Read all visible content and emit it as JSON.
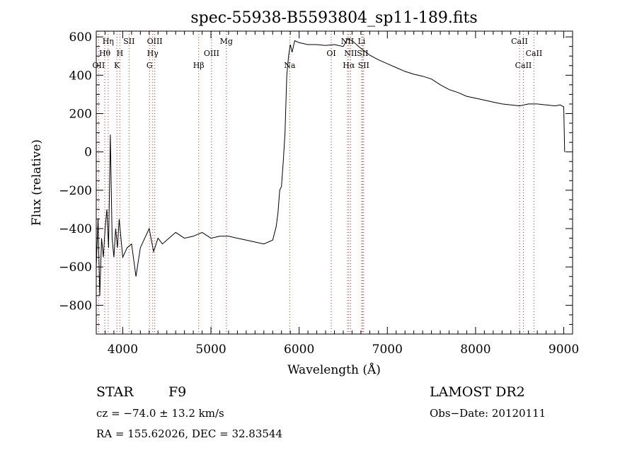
{
  "chart_data": {
    "type": "line",
    "title": "spec-55938-B5593804_sp11-189.fits",
    "xlabel": "Wavelength (Å)",
    "ylabel": "Flux (relative)",
    "xlim": [
      3700,
      9100
    ],
    "ylim": [
      -950,
      630
    ],
    "xticks": [
      4000,
      5000,
      6000,
      7000,
      8000,
      9000
    ],
    "yticks": [
      -800,
      -600,
      -400,
      -200,
      0,
      200,
      400,
      600
    ],
    "grid": false,
    "series": [
      {
        "name": "",
        "x": [
          3700,
          3720,
          3740,
          3760,
          3780,
          3800,
          3820,
          3840,
          3860,
          3880,
          3900,
          3920,
          3940,
          3960,
          3980,
          4000,
          4050,
          4100,
          4150,
          4200,
          4250,
          4300,
          4350,
          4400,
          4450,
          4500,
          4600,
          4700,
          4800,
          4900,
          5000,
          5100,
          5200,
          5300,
          5400,
          5500,
          5600,
          5700,
          5740,
          5760,
          5780,
          5800,
          5820,
          5840,
          5860,
          5880,
          5900,
          5920,
          5950,
          6000,
          6100,
          6200,
          6300,
          6400,
          6500,
          6550,
          6600,
          6700,
          6800,
          6900,
          7000,
          7100,
          7200,
          7300,
          7400,
          7500,
          7600,
          7700,
          7800,
          7900,
          8000,
          8100,
          8200,
          8300,
          8400,
          8500,
          8600,
          8700,
          8800,
          8900,
          8960,
          9000,
          9010
        ],
        "y": [
          -600,
          -350,
          -750,
          -450,
          -550,
          -400,
          -300,
          -500,
          90,
          -450,
          -550,
          -400,
          -500,
          -350,
          -450,
          -550,
          -500,
          -480,
          -650,
          -500,
          -450,
          -400,
          -520,
          -450,
          -480,
          -460,
          -420,
          -450,
          -440,
          -420,
          -450,
          -440,
          -440,
          -450,
          -460,
          -470,
          -480,
          -460,
          -390,
          -320,
          -200,
          -180,
          -50,
          100,
          400,
          500,
          560,
          520,
          580,
          570,
          560,
          560,
          555,
          560,
          550,
          590,
          580,
          540,
          505,
          480,
          460,
          440,
          420,
          405,
          395,
          380,
          350,
          325,
          310,
          290,
          280,
          270,
          260,
          250,
          245,
          240,
          250,
          250,
          245,
          240,
          245,
          235,
          0
        ]
      }
    ],
    "spectral_lines": [
      {
        "label": "Hη",
        "x": 3835,
        "row": 0
      },
      {
        "label": "Hθ",
        "x": 3797,
        "row": 1
      },
      {
        "label": "OII",
        "x": 3727,
        "row": 2
      },
      {
        "label": "SII",
        "x": 4072,
        "row": 0
      },
      {
        "label": "H",
        "x": 3968,
        "row": 1
      },
      {
        "label": "K",
        "x": 3934,
        "row": 2
      },
      {
        "label": "OIII",
        "x": 4363,
        "row": 0
      },
      {
        "label": "Hγ",
        "x": 4340,
        "row": 1
      },
      {
        "label": "G",
        "x": 4304,
        "row": 2
      },
      {
        "label": "Mg",
        "x": 5175,
        "row": 0
      },
      {
        "label": "OIII",
        "x": 5007,
        "row": 1
      },
      {
        "label": "Hβ",
        "x": 4861,
        "row": 2
      },
      {
        "label": "Na",
        "x": 5893,
        "row": 2
      },
      {
        "label": "OI",
        "x": 6364,
        "row": 1
      },
      {
        "label": "NII",
        "x": 6548,
        "row": 0
      },
      {
        "label": "Li",
        "x": 6708,
        "row": 0
      },
      {
        "label": "NII",
        "x": 6584,
        "row": 1
      },
      {
        "label": "SII",
        "x": 6720,
        "row": 1
      },
      {
        "label": "Hα",
        "x": 6563,
        "row": 2
      },
      {
        "label": "SII",
        "x": 6731,
        "row": 2
      },
      {
        "label": "CaII",
        "x": 8498,
        "row": 0
      },
      {
        "label": "CaII",
        "x": 8662,
        "row": 1
      },
      {
        "label": "CaII",
        "x": 8542,
        "row": 2
      }
    ]
  },
  "info": {
    "class_label": "STAR",
    "subclass": "F9",
    "survey": "LAMOST DR2",
    "cz": "cz = −74.0 ± 13.2 km/s",
    "obs_date": "Obs−Date: 20120111",
    "coords": "RA = 155.62026, DEC =  32.83544"
  }
}
